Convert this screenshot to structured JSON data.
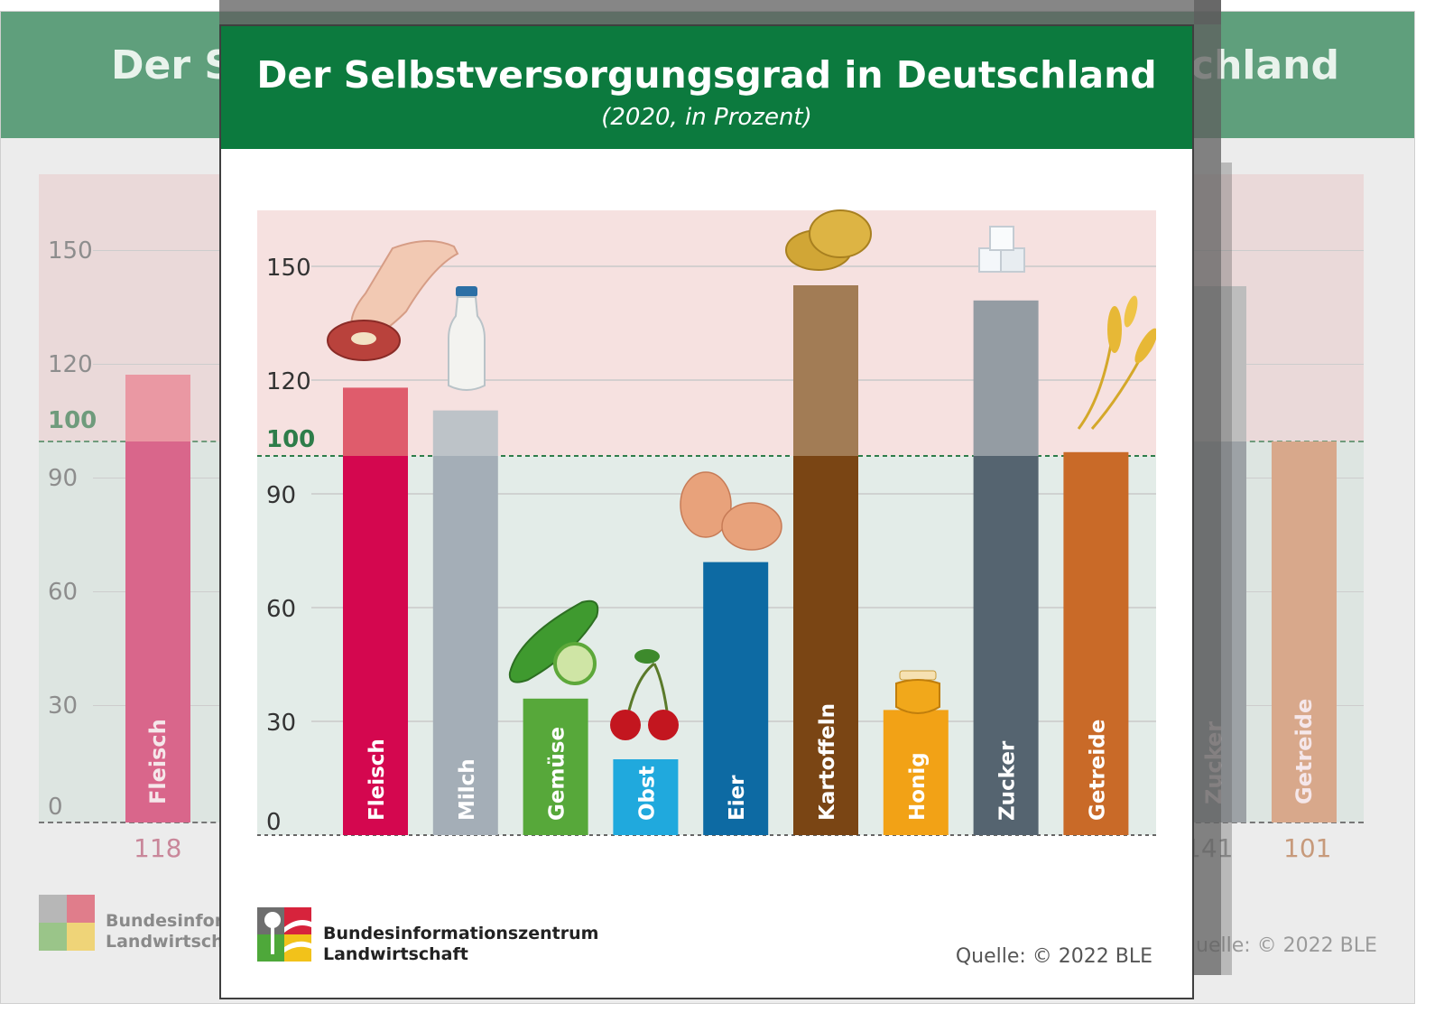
{
  "chart_data": {
    "type": "bar",
    "title": "Der Selbstversorgungsgrad in Deutschland",
    "subtitle": "(2020, in Prozent)",
    "categories": [
      "Fleisch",
      "Milch",
      "Gemüse",
      "Obst",
      "Eier",
      "Kartoffeln",
      "Honig",
      "Zucker",
      "Getreide"
    ],
    "values": [
      118,
      112,
      36,
      20,
      72,
      145,
      33,
      141,
      101
    ],
    "ylim": [
      0,
      170
    ],
    "yticks": [
      0,
      30,
      60,
      90,
      120,
      150
    ],
    "reference_line": {
      "value": 100,
      "label": "100"
    },
    "grid": true,
    "colors_lower": [
      "#d4074f",
      "#a4aeb7",
      "#57a83a",
      "#20a9dd",
      "#0d6aa3",
      "#7a4514",
      "#f2a216",
      "#556470",
      "#c96a28"
    ],
    "colors_upper": [
      "#df5c6c",
      "#bdc3c8",
      "#57a83a",
      "#20a9dd",
      "#0d6aa3",
      "#a27c55",
      "#f2a216",
      "#949ca3",
      "#c96a28"
    ],
    "value_label_colors": [
      "#a41a4a",
      "#a7aeb5",
      "#4f9b2f",
      "#1f9fd2",
      "#0e5f96",
      "#5a4533",
      "#e3a02a",
      "#4e4e4e",
      "#a8622e"
    ],
    "icons": [
      "meat-icon",
      "milk-bottle-icon",
      "cucumber-icon",
      "cherry-icon",
      "eggs-icon",
      "potato-icon",
      "honey-jar-icon",
      "sugar-cubes-icon",
      "grain-icon"
    ],
    "region_colors": {
      "above_100": "#f6e1e0",
      "below_100": "#e3ece8",
      "reference": "#2e7d4a"
    }
  },
  "footer": {
    "org_line1": "Bundesinformationszentrum",
    "org_line2": "Landwirtschaft",
    "source": "Quelle: © 2022 BLE"
  },
  "colors": {
    "header": "#0c7a3e"
  }
}
